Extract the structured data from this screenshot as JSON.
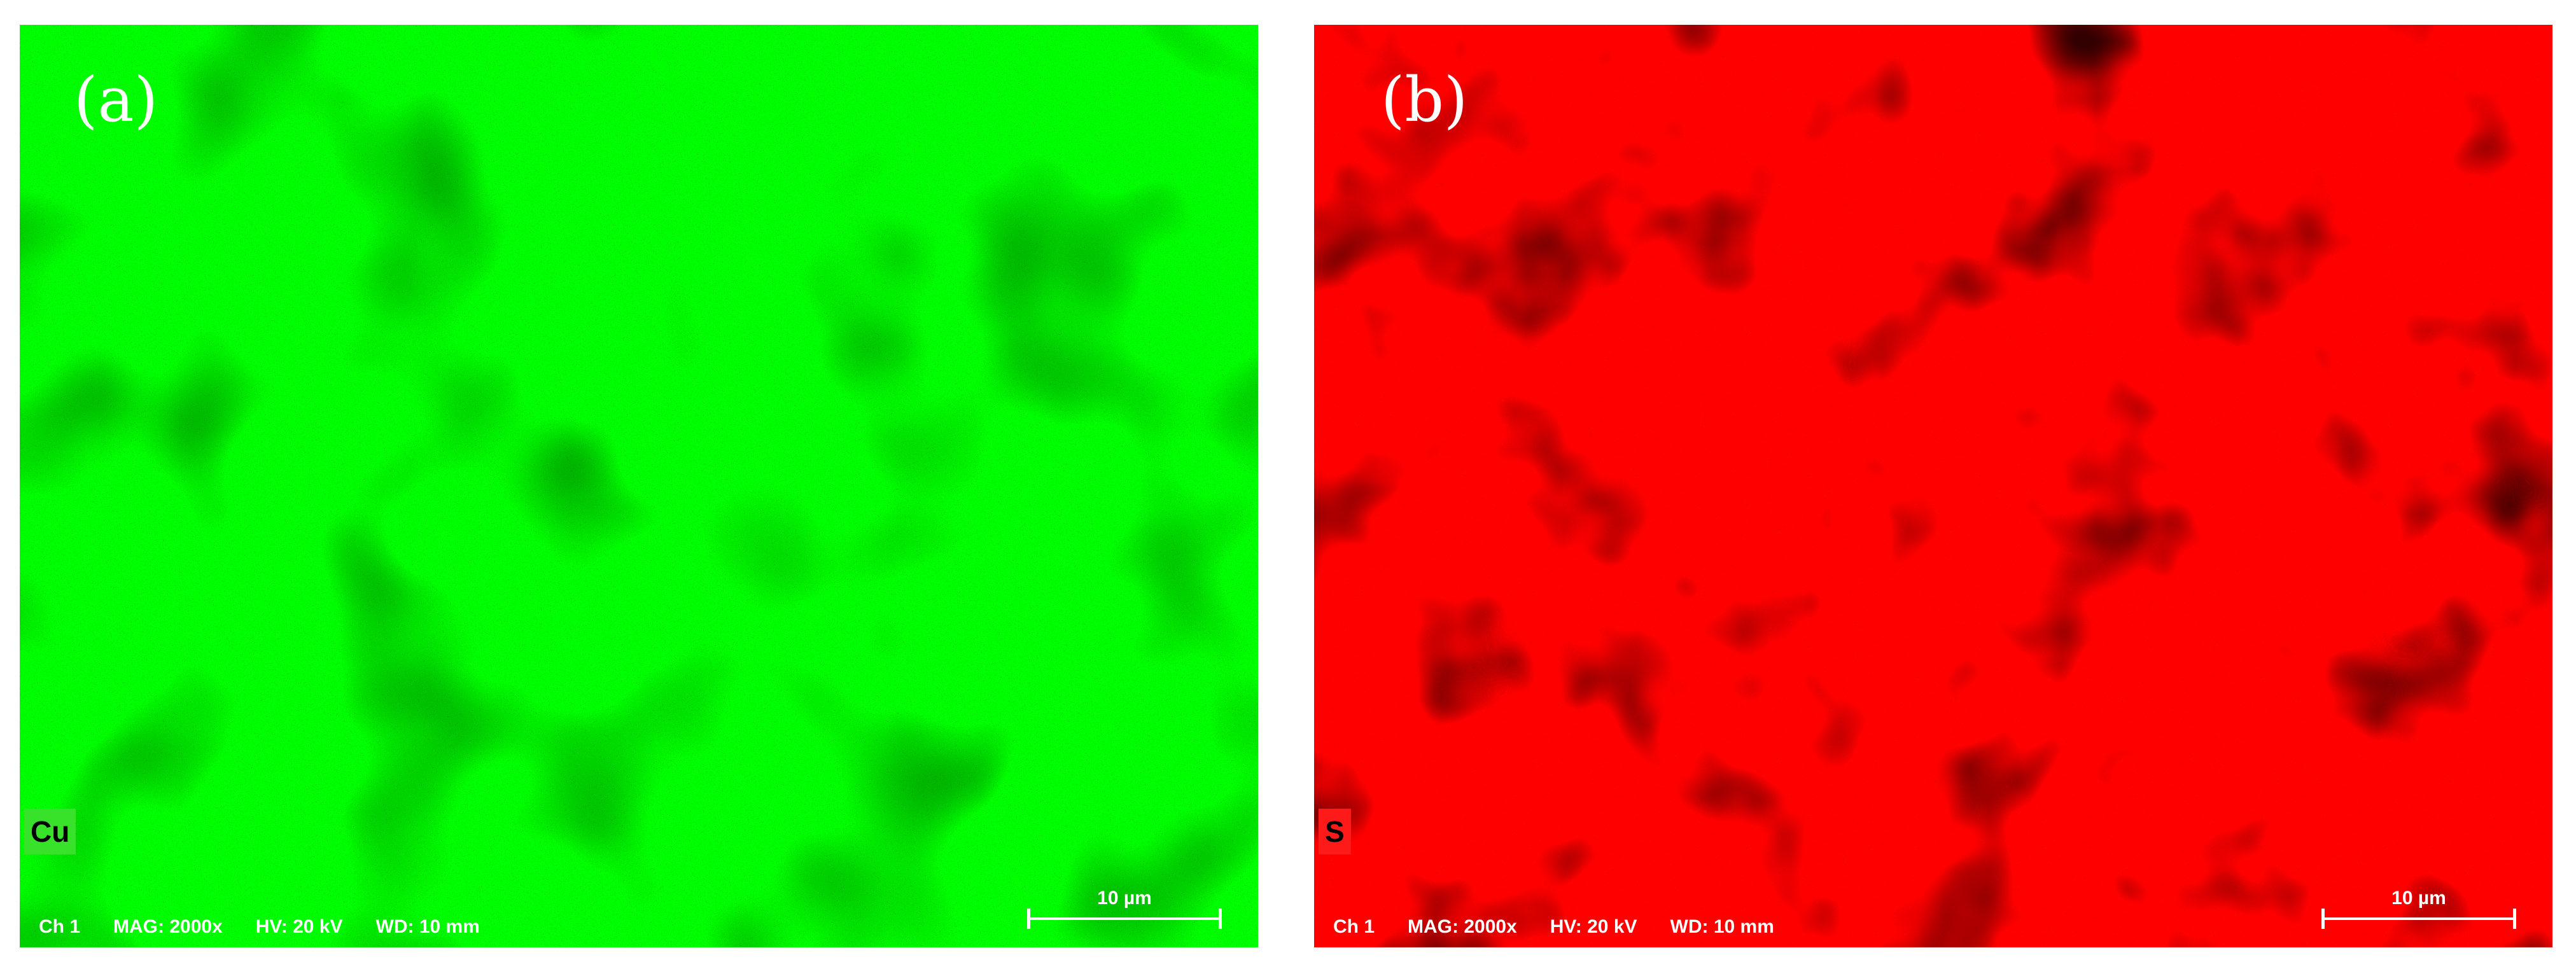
{
  "panels": [
    {
      "label": "(a)",
      "element": "Cu",
      "color": "#39e22a",
      "info": {
        "channel": "Ch 1",
        "magnification": "MAG: 2000x",
        "voltage": "HV: 20 kV",
        "working_distance": "WD: 10 mm"
      },
      "scale_bar": "10 µm"
    },
    {
      "label": "(b)",
      "element": "S",
      "color": "#ff1a1a",
      "info": {
        "channel": "Ch 1",
        "magnification": "MAG: 2000x",
        "voltage": "HV: 20 kV",
        "working_distance": "WD: 10 mm"
      },
      "scale_bar": "10 µm"
    }
  ]
}
